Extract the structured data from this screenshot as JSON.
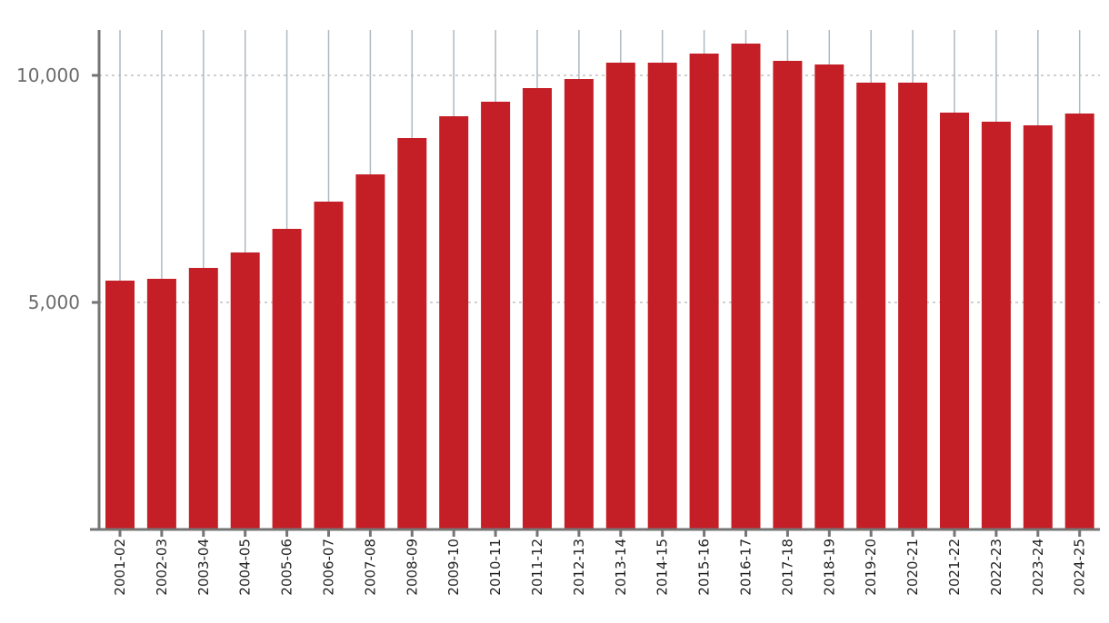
{
  "chart_data": {
    "type": "bar",
    "title": "",
    "xlabel": "",
    "ylabel": "",
    "categories": [
      "2001-02",
      "2002-03",
      "2003-04",
      "2004-05",
      "2005-06",
      "2006-07",
      "2007-08",
      "2008-09",
      "2009-10",
      "2010-11",
      "2011-12",
      "2012-13",
      "2013-14",
      "2014-15",
      "2015-16",
      "2016-17",
      "2017-18",
      "2018-19",
      "2019-20",
      "2020-21",
      "2021-22",
      "2022-23",
      "2023-24",
      "2024-25"
    ],
    "values": [
      5480,
      5520,
      5760,
      6100,
      6620,
      7220,
      7820,
      8620,
      9100,
      9420,
      9720,
      9920,
      10280,
      10280,
      10480,
      10700,
      10320,
      10240,
      9840,
      9840,
      9180,
      8980,
      8900,
      9160
    ],
    "ylim": [
      0,
      11000
    ],
    "yticks": [
      5000,
      10000
    ],
    "ytick_labels": [
      "5,000",
      "10,000"
    ],
    "grid": "horizontal dashed at y ticks; vertical solid at categories",
    "colors": {
      "bar": "#c41f26",
      "axis": "#757575",
      "hgrid": "#b5b5b5",
      "vgrid": "#aeb9c2",
      "tick_text": "#6b6b6b"
    }
  }
}
